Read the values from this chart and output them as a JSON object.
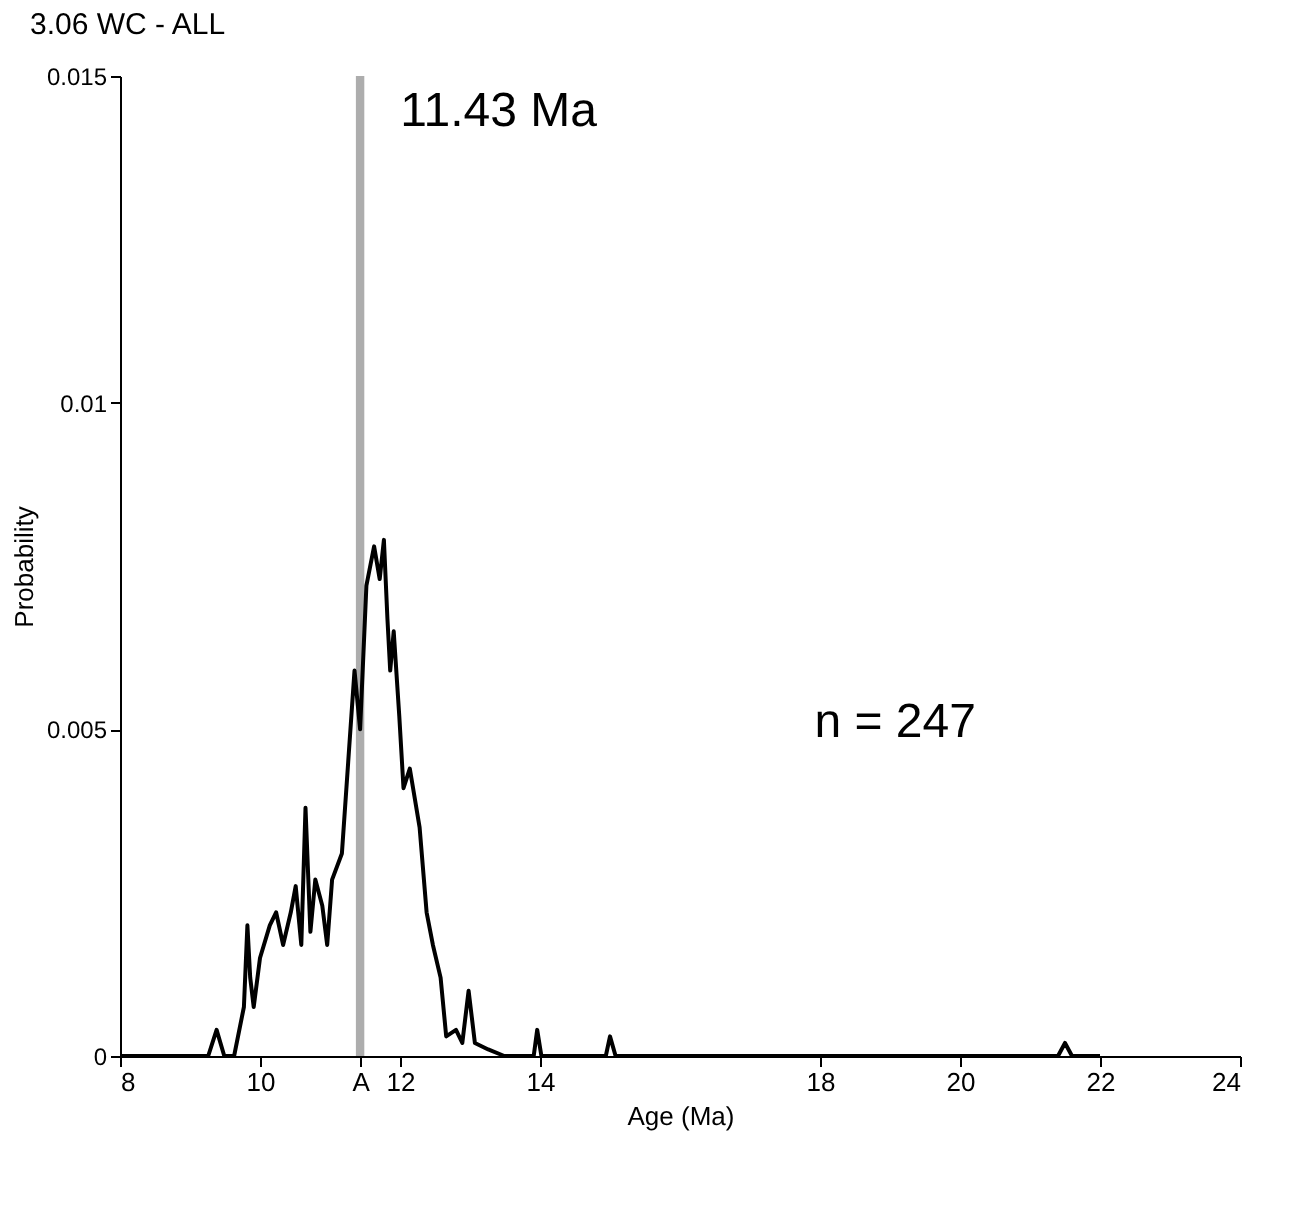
{
  "chart_data": {
    "type": "line",
    "title": "3.06   WC - ALL",
    "xlabel": "Age (Ma)",
    "ylabel": "Probability",
    "x": [
      8,
      9.26,
      9.38,
      9.49,
      9.63,
      9.77,
      9.82,
      9.86,
      9.91,
      10.0,
      10.14,
      10.23,
      10.33,
      10.44,
      10.51,
      10.59,
      10.65,
      10.72,
      10.79,
      10.89,
      10.96,
      11.03,
      11.17,
      11.26,
      11.35,
      11.43,
      11.52,
      11.63,
      11.71,
      11.77,
      11.82,
      11.86,
      11.91,
      11.99,
      12.05,
      12.14,
      12.28,
      12.38,
      12.47,
      12.58,
      12.66,
      12.8,
      12.89,
      12.98,
      13.07,
      13.26,
      13.49,
      13.91,
      13.96,
      14.02,
      14.94,
      15.0,
      15.08,
      21.4,
      21.5,
      21.6,
      22.0
    ],
    "series": [
      {
        "color": "#000000",
        "values": [
          0,
          0,
          0.0004,
          0,
          0,
          0.00075,
          0.002,
          0.0012,
          0.00075,
          0.0015,
          0.002,
          0.0022,
          0.0017,
          0.0022,
          0.0026,
          0.0017,
          0.0038,
          0.0019,
          0.0027,
          0.0023,
          0.0017,
          0.0027,
          0.0031,
          0.0045,
          0.0059,
          0.005,
          0.0072,
          0.0078,
          0.0073,
          0.0079,
          0.0067,
          0.0059,
          0.0065,
          0.0052,
          0.0041,
          0.0044,
          0.0035,
          0.0022,
          0.0017,
          0.0012,
          0.0003,
          0.0004,
          0.0002,
          0.001,
          0.0002,
          0.0001,
          0,
          0,
          0.0004,
          0,
          0,
          0.0003,
          0,
          0,
          0.0002,
          0,
          0
        ]
      }
    ],
    "xlim": [
      8,
      24
    ],
    "xticks": [
      8,
      10,
      {
        "value": 11.43,
        "label": "A"
      },
      12,
      14,
      18,
      20,
      22,
      24
    ],
    "ylim": [
      0,
      0.015
    ],
    "yticks": [
      0,
      0.005,
      0.01,
      0.015
    ],
    "bands": [
      {
        "axis": "x",
        "from": 11.37,
        "to": 11.49,
        "label": "11.43 Ma",
        "color": "#999999"
      }
    ],
    "annotations": [
      "n = 247"
    ],
    "grid": false
  }
}
